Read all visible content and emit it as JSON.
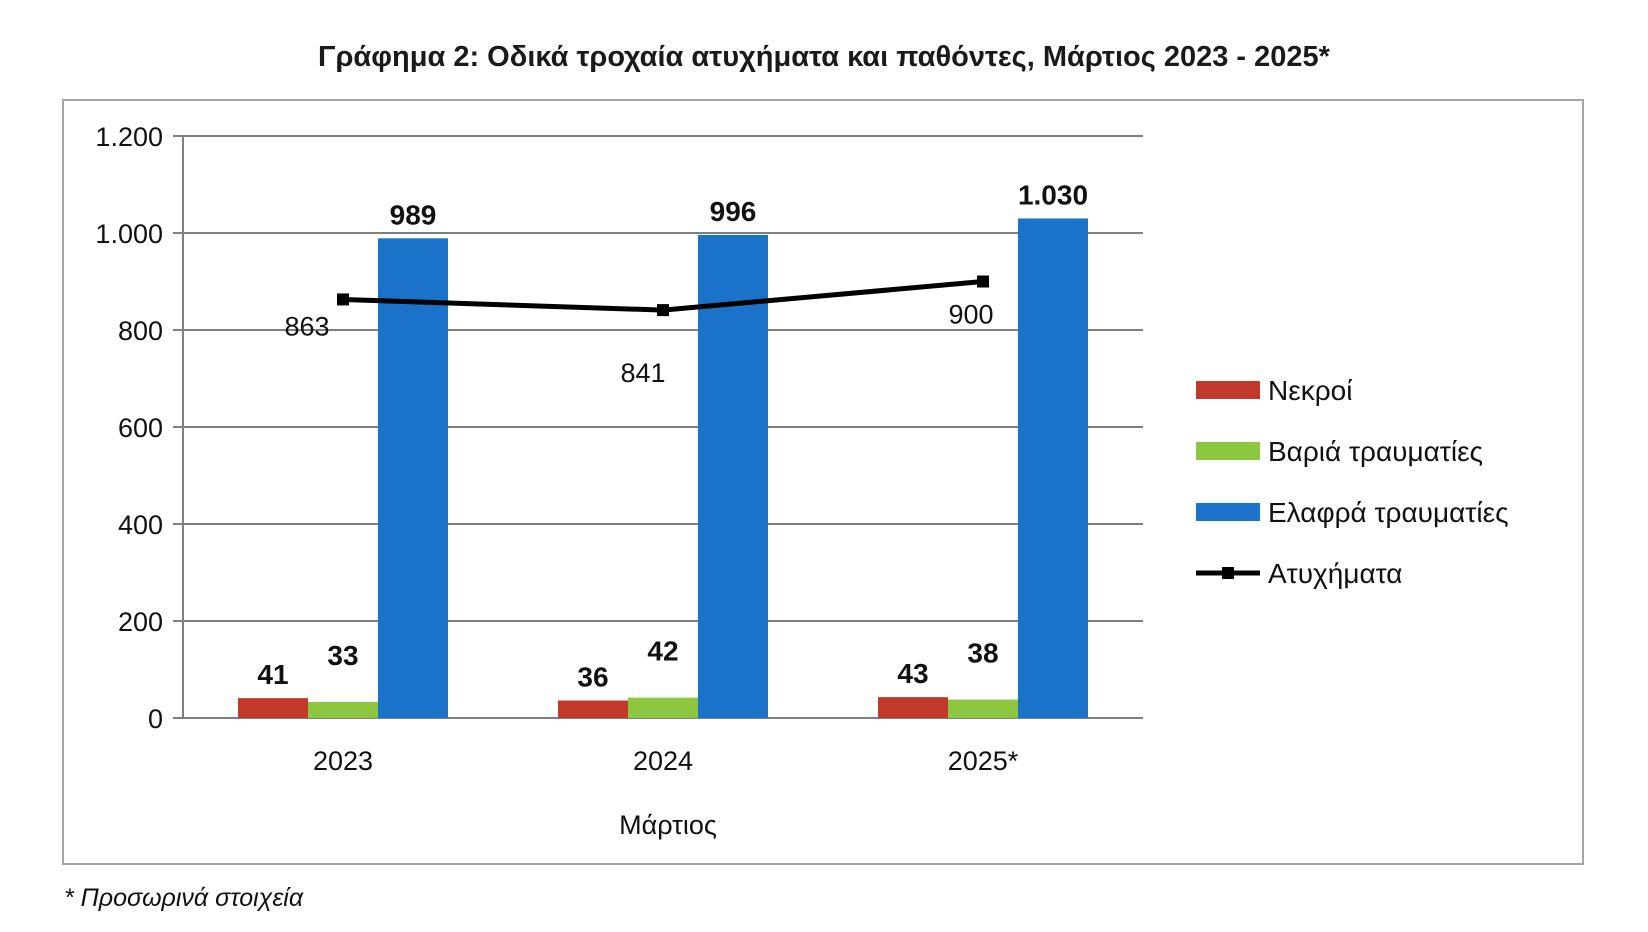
{
  "chart_data": {
    "type": "bar",
    "title": "Γράφημα 2: Οδικά τροχαία ατυχήματα και παθόντες, Μάρτιος 2023 - 2025*",
    "xlabel": "Μάρτιος",
    "ylabel": "",
    "categories": [
      "2023",
      "2024",
      "2025*"
    ],
    "ylim": [
      0,
      1200
    ],
    "yticks": [
      0,
      200,
      400,
      600,
      800,
      1000,
      1200
    ],
    "ytick_labels": [
      "0",
      "200",
      "400",
      "600",
      "800",
      "1.000",
      "1.200"
    ],
    "grid": true,
    "legend_position": "right",
    "series": [
      {
        "name": "Νεκροί",
        "kind": "bar",
        "color": "#c0392b",
        "values": [
          41,
          36,
          43
        ],
        "labels": [
          "41",
          "36",
          "43"
        ]
      },
      {
        "name": "Βαριά τραυματίες",
        "kind": "bar",
        "color": "#8dc63f",
        "values": [
          33,
          42,
          38
        ],
        "labels": [
          "33",
          "42",
          "38"
        ]
      },
      {
        "name": "Ελαφρά τραυματίες",
        "kind": "bar",
        "color": "#1a73c8",
        "values": [
          989,
          996,
          1030
        ],
        "labels": [
          "989",
          "996",
          "1.030"
        ]
      },
      {
        "name": "Ατυχήματα",
        "kind": "line",
        "color": "#000000",
        "values": [
          863,
          841,
          900
        ],
        "labels": [
          "863",
          "841",
          "900"
        ]
      }
    ]
  },
  "footnote": "* Προσωρινά στοιχεία"
}
